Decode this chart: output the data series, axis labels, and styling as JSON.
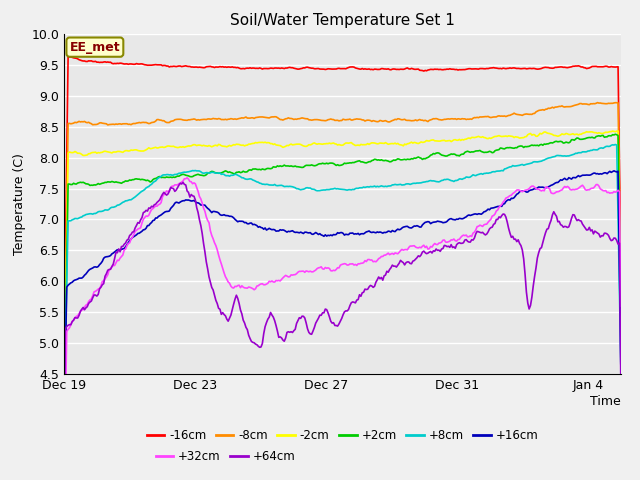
{
  "title": "Soil/Water Temperature Set 1",
  "xlabel": "Time",
  "ylabel": "Temperature (C)",
  "ylim": [
    4.5,
    10.0
  ],
  "x_tick_labels": [
    "Dec 19",
    "Dec 23",
    "Dec 27",
    "Dec 31",
    "Jan 4"
  ],
  "x_tick_positions": [
    0,
    4,
    8,
    12,
    16
  ],
  "annotation": "EE_met",
  "bg_color": "#e8e8e8",
  "fig_bg_color": "#f0f0f0",
  "grid_color": "#ffffff",
  "series": [
    {
      "label": "-16cm",
      "color": "#ff0000"
    },
    {
      "label": "-8cm",
      "color": "#ff8c00"
    },
    {
      "label": "-2cm",
      "color": "#ffff00"
    },
    {
      "label": "+2cm",
      "color": "#00cc00"
    },
    {
      "label": "+8cm",
      "color": "#00cccc"
    },
    {
      "label": "+16cm",
      "color": "#0000bb"
    },
    {
      "label": "+32cm",
      "color": "#ff44ff"
    },
    {
      "label": "+64cm",
      "color": "#9900cc"
    }
  ],
  "yticks": [
    4.5,
    5.0,
    5.5,
    6.0,
    6.5,
    7.0,
    7.5,
    8.0,
    8.5,
    9.0,
    9.5,
    10.0
  ],
  "linewidth": 1.2,
  "title_fontsize": 11,
  "tick_fontsize": 9,
  "legend_fontsize": 8.5
}
